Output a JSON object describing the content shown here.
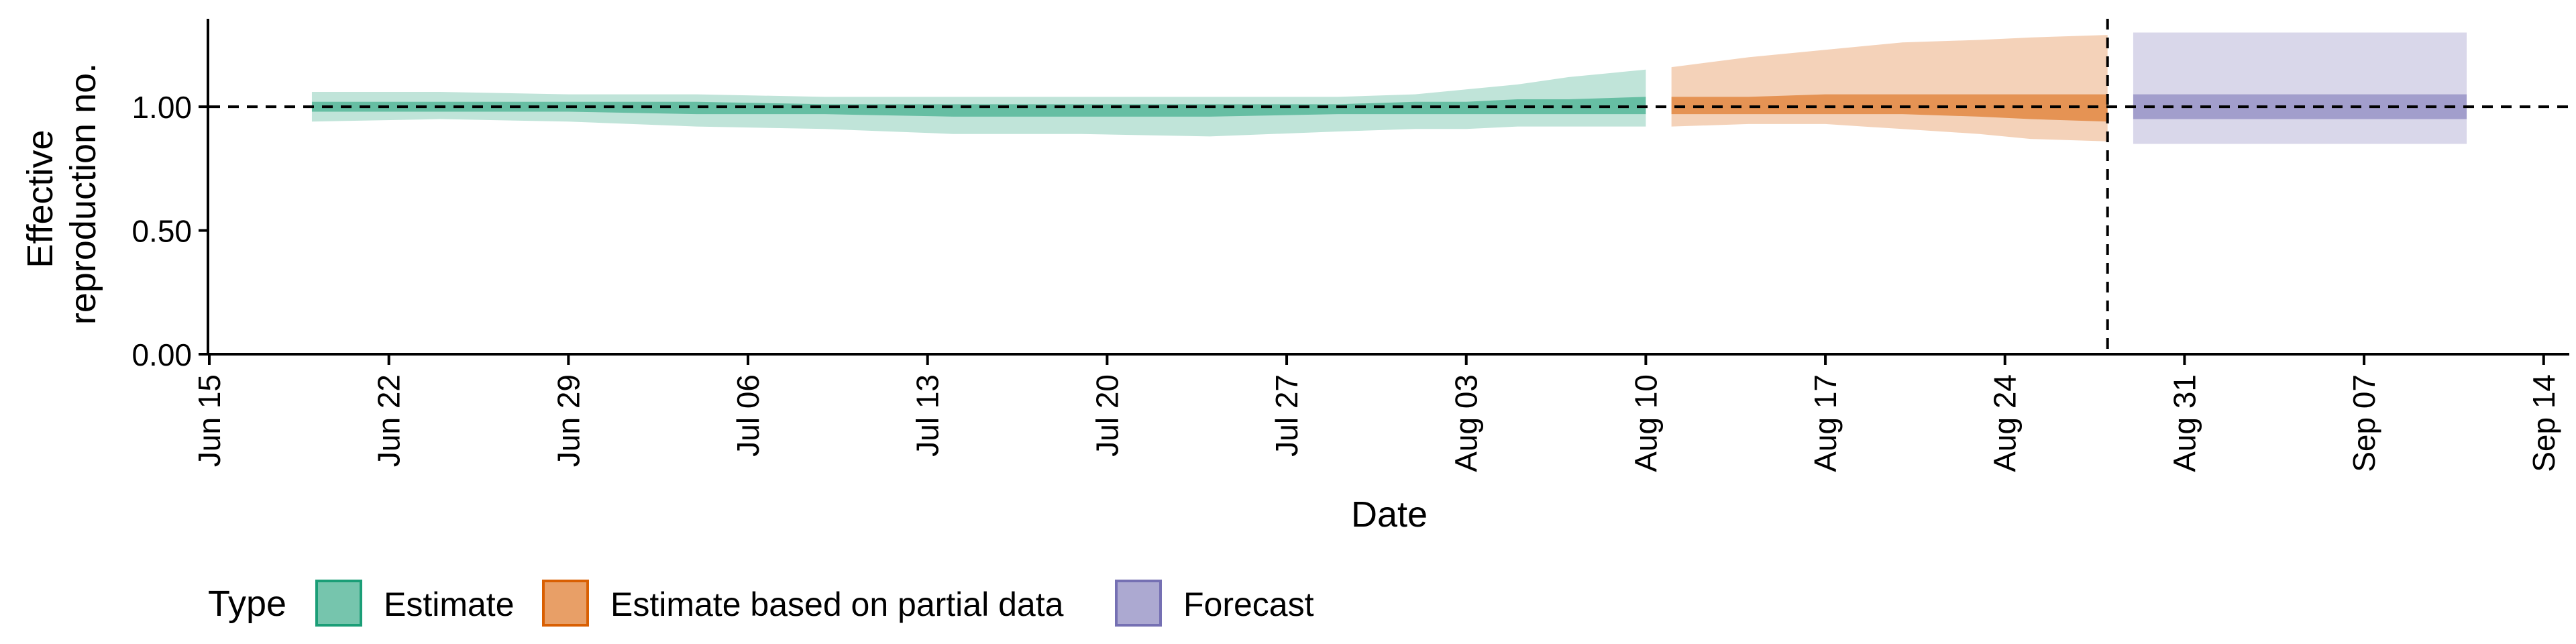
{
  "chart_data": {
    "type": "area",
    "xlabel": "Date",
    "ylabel_lines": [
      "Effective",
      "reproduction no."
    ],
    "ylim": [
      0,
      1.35
    ],
    "y_ticks": [
      0,
      0.5,
      1.0
    ],
    "y_tick_labels": [
      "0.00",
      "0.50",
      "1.00"
    ],
    "x_range": [
      "2020-06-15",
      "2020-09-15"
    ],
    "x_ticks": [
      "2020-06-15",
      "2020-06-22",
      "2020-06-29",
      "2020-07-06",
      "2020-07-13",
      "2020-07-20",
      "2020-07-27",
      "2020-08-03",
      "2020-08-10",
      "2020-08-17",
      "2020-08-24",
      "2020-08-31",
      "2020-09-07",
      "2020-09-14"
    ],
    "x_tick_labels": [
      "Jun 15",
      "Jun 22",
      "Jun 29",
      "Jul 06",
      "Jul 13",
      "Jul 20",
      "Jul 27",
      "Aug 03",
      "Aug 10",
      "Aug 17",
      "Aug 24",
      "Aug 31",
      "Sep 07",
      "Sep 14"
    ],
    "reference_hline": 1.0,
    "forecast_date": "2020-08-28",
    "grid": false,
    "legend": {
      "title": "Type",
      "placement": "bottom-left",
      "items": [
        {
          "label": "Estimate",
          "color": "#1b9e77"
        },
        {
          "label": "Estimate based on partial data",
          "color": "#d95f02"
        },
        {
          "label": "Forecast",
          "color": "#7570b3"
        }
      ]
    },
    "series": [
      {
        "name": "Estimate",
        "color": "#1b9e77",
        "dates": [
          "2020-06-19",
          "2020-06-24",
          "2020-06-29",
          "2020-07-04",
          "2020-07-09",
          "2020-07-14",
          "2020-07-19",
          "2020-07-24",
          "2020-07-29",
          "2020-08-01",
          "2020-08-03",
          "2020-08-05",
          "2020-08-07",
          "2020-08-10"
        ],
        "lower90": [
          0.94,
          0.95,
          0.94,
          0.92,
          0.91,
          0.89,
          0.89,
          0.88,
          0.9,
          0.91,
          0.91,
          0.92,
          0.92,
          0.92
        ],
        "upper90": [
          1.06,
          1.06,
          1.05,
          1.05,
          1.04,
          1.04,
          1.04,
          1.04,
          1.04,
          1.05,
          1.07,
          1.09,
          1.12,
          1.15
        ],
        "lower50": [
          0.98,
          0.98,
          0.98,
          0.97,
          0.97,
          0.96,
          0.96,
          0.96,
          0.97,
          0.97,
          0.97,
          0.97,
          0.97,
          0.97
        ],
        "upper50": [
          1.02,
          1.02,
          1.02,
          1.02,
          1.01,
          1.01,
          1.01,
          1.01,
          1.01,
          1.02,
          1.02,
          1.03,
          1.03,
          1.04
        ]
      },
      {
        "name": "Estimate based on partial data",
        "color": "#d95f02",
        "dates": [
          "2020-08-11",
          "2020-08-14",
          "2020-08-17",
          "2020-08-20",
          "2020-08-23",
          "2020-08-25",
          "2020-08-28"
        ],
        "lower90": [
          0.92,
          0.93,
          0.93,
          0.91,
          0.89,
          0.87,
          0.86
        ],
        "upper90": [
          1.16,
          1.2,
          1.23,
          1.26,
          1.27,
          1.28,
          1.29
        ],
        "lower50": [
          0.97,
          0.97,
          0.97,
          0.97,
          0.96,
          0.95,
          0.94
        ],
        "upper50": [
          1.04,
          1.04,
          1.05,
          1.05,
          1.05,
          1.05,
          1.05
        ]
      },
      {
        "name": "Forecast",
        "color": "#7570b3",
        "dates": [
          "2020-08-29",
          "2020-09-11"
        ],
        "lower90": [
          0.85,
          0.85
        ],
        "upper90": [
          1.3,
          1.3
        ],
        "lower50": [
          0.95,
          0.95
        ],
        "upper50": [
          1.05,
          1.05
        ]
      }
    ]
  }
}
